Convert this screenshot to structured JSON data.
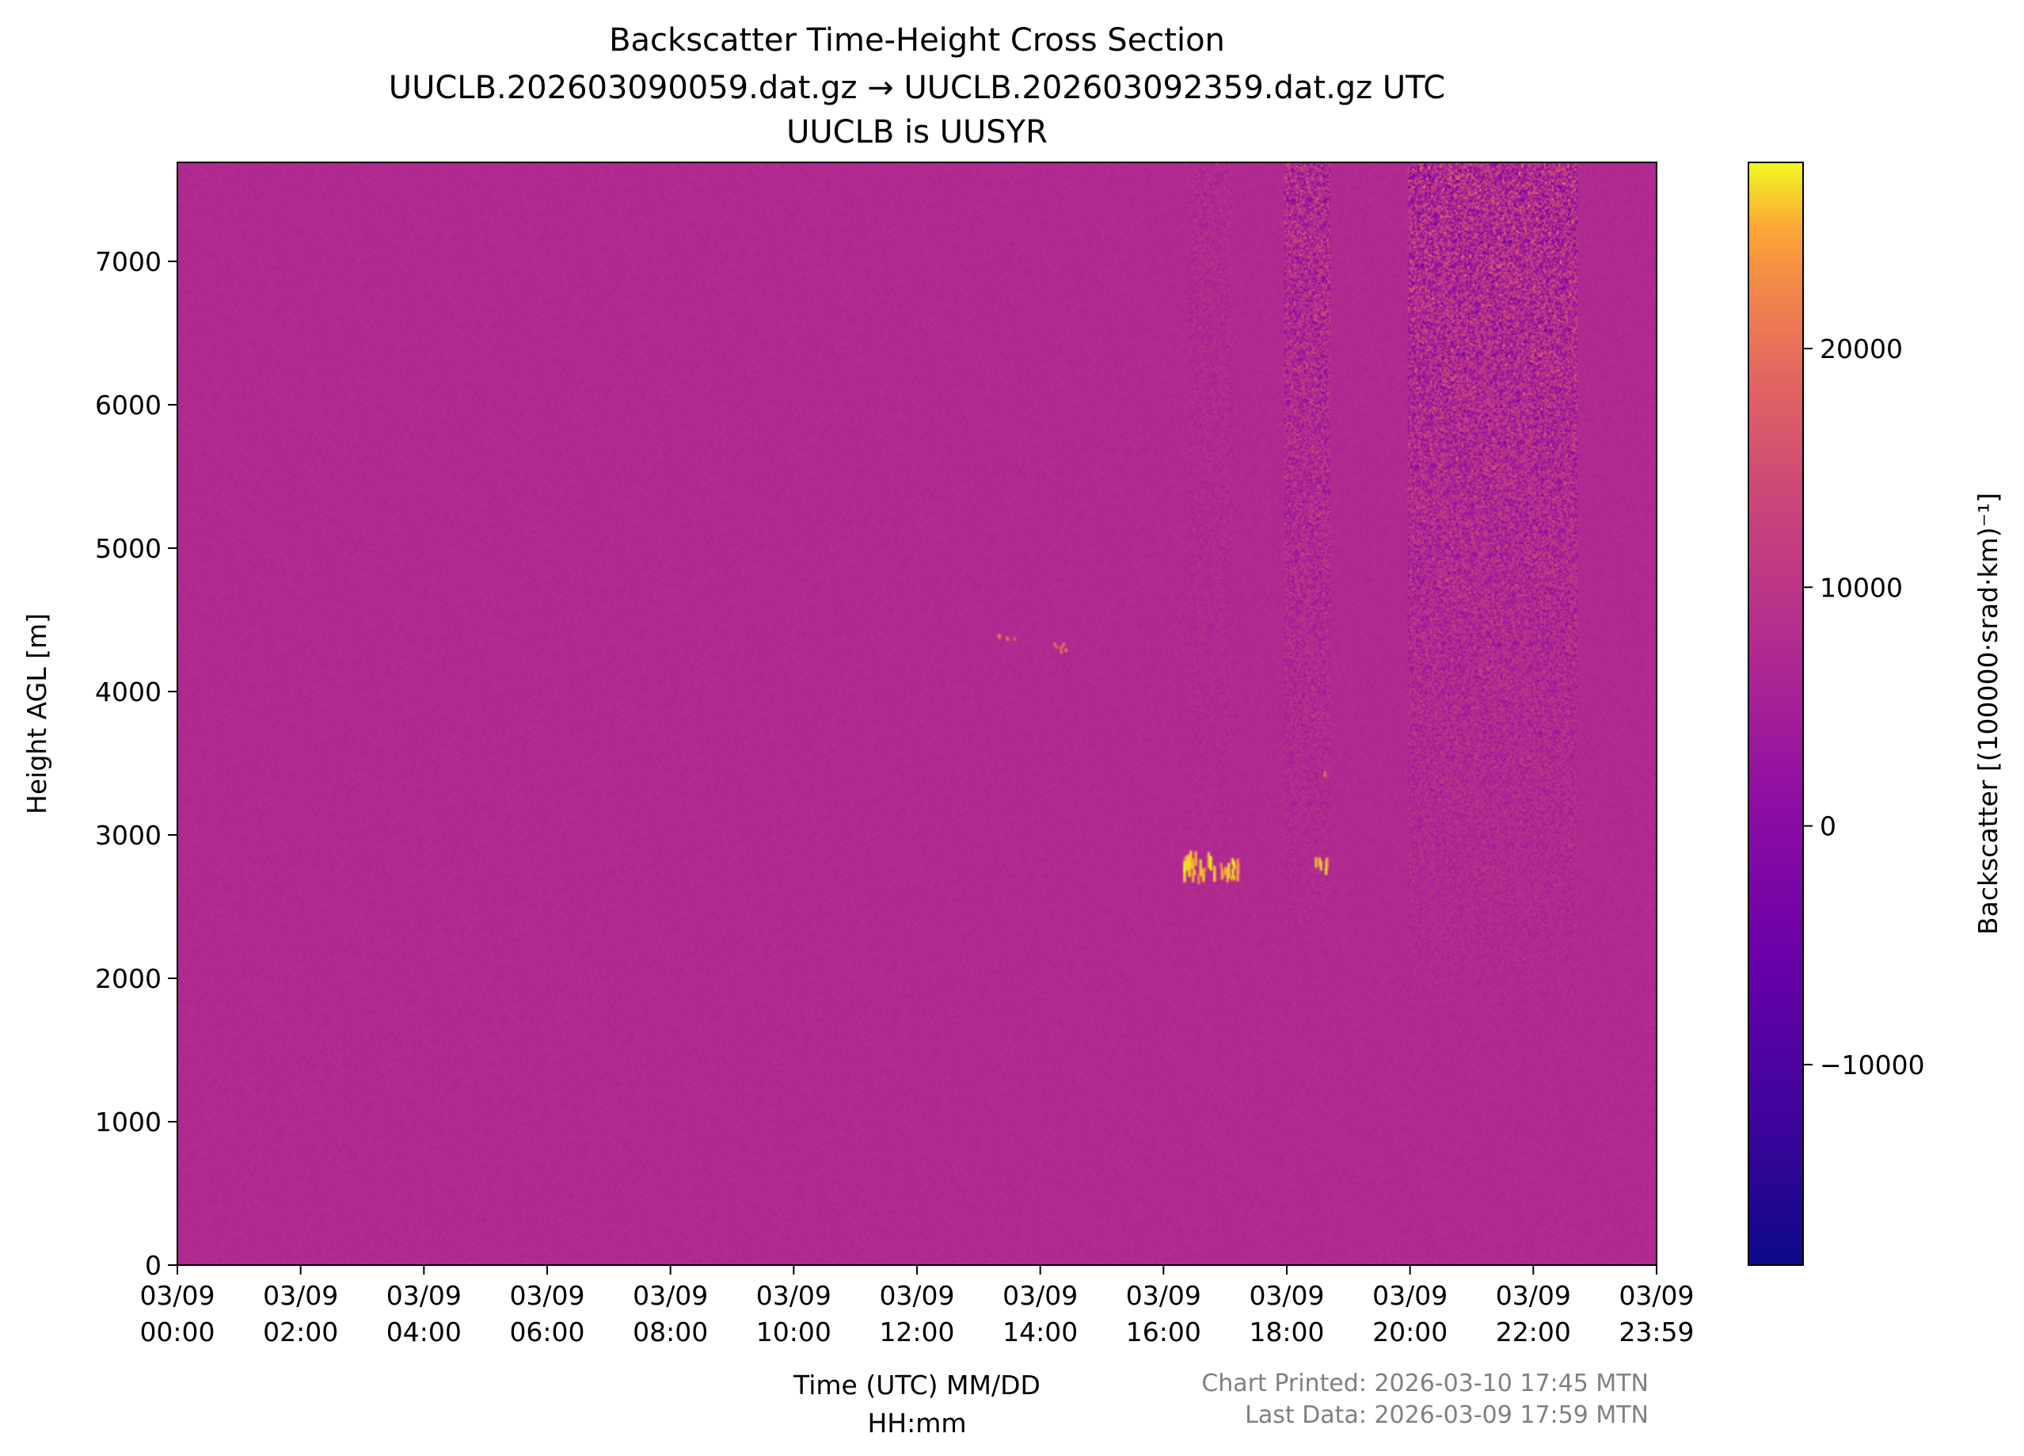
{
  "chart_data": {
    "type": "heatmap",
    "title": "Backscatter Time-Height Cross Section",
    "subtitle_lines": [
      "UUCLB.202603090059.dat.gz → UUCLB.202603092359.dat.gz UTC",
      "UUCLB is UUSYR"
    ],
    "xlabel_lines": [
      "Time (UTC) MM/DD",
      "HH:mm"
    ],
    "ylabel": "Height AGL [m]",
    "colorbar_label": "Backscatter [(100000·srad·km)⁻¹]",
    "colormap": "plasma",
    "xlim": [
      "03/09 00:00",
      "03/09 23:59"
    ],
    "ylim": [
      0,
      7690
    ],
    "clim": [
      -18400,
      27800
    ],
    "xticks": [
      {
        "date": "03/09",
        "time": "00:00"
      },
      {
        "date": "03/09",
        "time": "02:00"
      },
      {
        "date": "03/09",
        "time": "04:00"
      },
      {
        "date": "03/09",
        "time": "06:00"
      },
      {
        "date": "03/09",
        "time": "08:00"
      },
      {
        "date": "03/09",
        "time": "10:00"
      },
      {
        "date": "03/09",
        "time": "12:00"
      },
      {
        "date": "03/09",
        "time": "14:00"
      },
      {
        "date": "03/09",
        "time": "16:00"
      },
      {
        "date": "03/09",
        "time": "18:00"
      },
      {
        "date": "03/09",
        "time": "20:00"
      },
      {
        "date": "03/09",
        "time": "22:00"
      },
      {
        "date": "03/09",
        "time": "23:59"
      }
    ],
    "yticks": [
      0,
      1000,
      2000,
      3000,
      4000,
      5000,
      6000,
      7000
    ],
    "colorbar_ticks": [
      -10000,
      0,
      10000,
      20000
    ],
    "colorbar_tick_labels": [
      "−10000",
      "0",
      "10000",
      "20000"
    ],
    "background_value": 0,
    "grid": false
  },
  "footer": {
    "printed": "Chart Printed: 2026-03-10 17:45 MTN",
    "last_data": "Last Data: 2026-03-09 17:59 MTN",
    "color": "#808080"
  }
}
